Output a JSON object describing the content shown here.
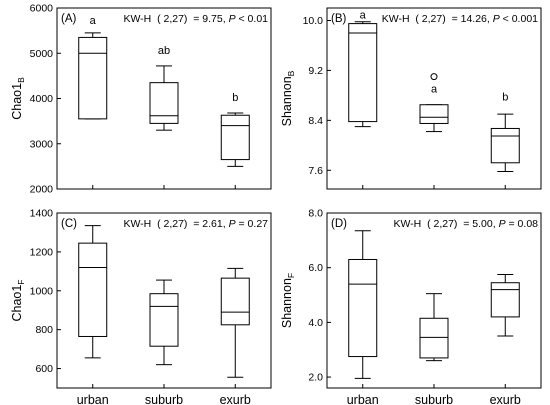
{
  "x_categories": [
    "urban",
    "suburb",
    "exurb"
  ],
  "chart_data": [
    {
      "type": "box",
      "panel_label": "(A)",
      "ylabel_main": "Chao1",
      "ylabel_sub": "B",
      "stat_prefix": "KW-H  ( 2,27)  = 9.75,",
      "stat_p_symbol": "P",
      "stat_p_value": "< 0.01",
      "ylim": [
        2000,
        6000
      ],
      "yticks": [
        2000,
        3000,
        4000,
        5000,
        6000
      ],
      "ytick_labels": [
        "2000",
        "3000",
        "4000",
        "5000",
        "6000"
      ],
      "boxes": [
        {
          "category": "urban",
          "min": 3550,
          "q1": 3550,
          "median": 5000,
          "q3": 5350,
          "max": 5450,
          "letter": "a",
          "letter_y": 5650,
          "outliers": []
        },
        {
          "category": "suburb",
          "min": 3300,
          "q1": 3450,
          "median": 3620,
          "q3": 4350,
          "max": 4720,
          "letter": "ab",
          "letter_y": 4980,
          "outliers": []
        },
        {
          "category": "exurb",
          "min": 2500,
          "q1": 2650,
          "median": 3400,
          "q3": 3630,
          "max": 3680,
          "letter": "b",
          "letter_y": 3950,
          "outliers": []
        }
      ]
    },
    {
      "type": "box",
      "panel_label": "(B)",
      "ylabel_main": "Shannon",
      "ylabel_sub": "B",
      "stat_prefix": "KW-H  ( 2,27)  = 14.26,",
      "stat_p_symbol": "P",
      "stat_p_value": "< 0.001",
      "ylim": [
        7.3,
        10.2
      ],
      "yticks": [
        7.6,
        8.4,
        9.2,
        10.0
      ],
      "ytick_labels": [
        "7.6",
        "8.4",
        "9.2",
        "10.0"
      ],
      "boxes": [
        {
          "category": "urban",
          "min": 8.3,
          "q1": 8.38,
          "median": 9.8,
          "q3": 9.95,
          "max": 9.98,
          "letter": "a",
          "letter_y": 10.03,
          "outliers": []
        },
        {
          "category": "suburb",
          "min": 8.22,
          "q1": 8.35,
          "median": 8.45,
          "q3": 8.65,
          "max": 8.65,
          "letter": "a",
          "letter_y": 8.85,
          "outliers": [
            9.1
          ]
        },
        {
          "category": "exurb",
          "min": 7.58,
          "q1": 7.72,
          "median": 8.15,
          "q3": 8.27,
          "max": 8.5,
          "letter": "b",
          "letter_y": 8.72,
          "outliers": []
        }
      ]
    },
    {
      "type": "box",
      "panel_label": "(C)",
      "ylabel_main": "Chao1",
      "ylabel_sub": "F",
      "stat_prefix": "KW-H  ( 2,27)  = 2.61,",
      "stat_p_symbol": "P",
      "stat_p_value": "= 0.27",
      "ylim": [
        500,
        1400
      ],
      "yticks": [
        600,
        800,
        1000,
        1200,
        1400
      ],
      "ytick_labels": [
        "600",
        "800",
        "1000",
        "1200",
        "1400"
      ],
      "boxes": [
        {
          "category": "urban",
          "min": 655,
          "q1": 765,
          "median": 1120,
          "q3": 1245,
          "max": 1335,
          "letter": "",
          "outliers": []
        },
        {
          "category": "suburb",
          "min": 620,
          "q1": 715,
          "median": 920,
          "q3": 985,
          "max": 1055,
          "letter": "",
          "outliers": []
        },
        {
          "category": "exurb",
          "min": 555,
          "q1": 825,
          "median": 890,
          "q3": 1065,
          "max": 1115,
          "letter": "",
          "outliers": []
        }
      ]
    },
    {
      "type": "box",
      "panel_label": "(D)",
      "ylabel_main": "Shannon",
      "ylabel_sub": "F",
      "stat_prefix": "KW-H  ( 2,27)  = 5.00,",
      "stat_p_symbol": "P",
      "stat_p_value": "= 0.08",
      "ylim": [
        1.6,
        8.0
      ],
      "yticks": [
        2.0,
        4.0,
        6.0,
        8.0
      ],
      "ytick_labels": [
        "2.0",
        "4.0",
        "6.0",
        "8.0"
      ],
      "boxes": [
        {
          "category": "urban",
          "min": 1.95,
          "q1": 2.75,
          "median": 5.4,
          "q3": 6.3,
          "max": 7.35,
          "letter": "",
          "outliers": []
        },
        {
          "category": "suburb",
          "min": 2.6,
          "q1": 2.7,
          "median": 3.45,
          "q3": 4.15,
          "max": 5.05,
          "letter": "",
          "outliers": []
        },
        {
          "category": "exurb",
          "min": 3.5,
          "q1": 4.2,
          "median": 5.2,
          "q3": 5.45,
          "max": 5.75,
          "letter": "",
          "outliers": []
        }
      ]
    }
  ]
}
